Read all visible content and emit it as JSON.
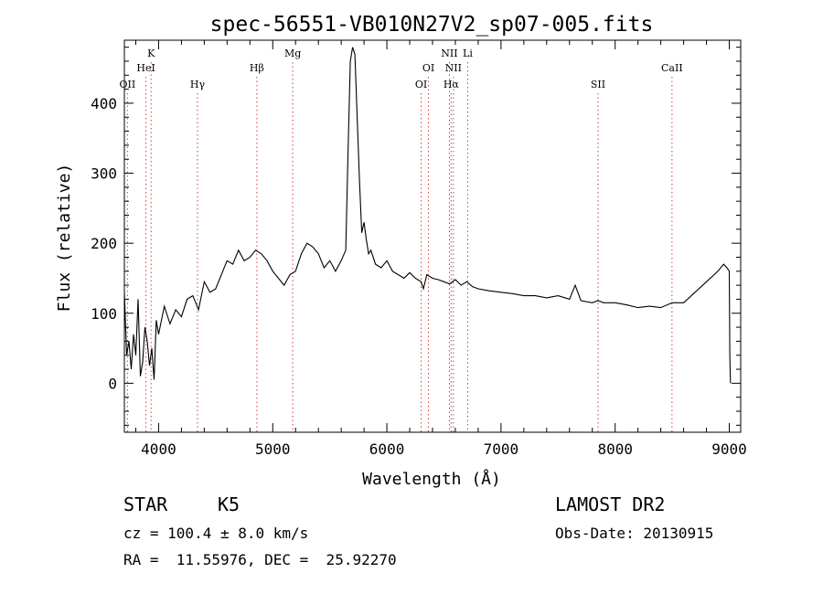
{
  "chart_data": {
    "type": "line",
    "title": "spec-56551-VB010N27V2_sp07-005.fits",
    "xlabel": "Wavelength (Å)",
    "ylabel": "Flux (relative)",
    "xlim": [
      3700,
      9100
    ],
    "ylim": [
      -70,
      490
    ],
    "xticks": [
      4000,
      5000,
      6000,
      7000,
      8000,
      9000
    ],
    "yticks": [
      0,
      100,
      200,
      300,
      400
    ],
    "grid": false,
    "lines": [
      {
        "label": "K",
        "wavelength": 3934,
        "row": 0
      },
      {
        "label": "HeI",
        "wavelength": 3889,
        "row": 1
      },
      {
        "label": "OII",
        "wavelength": 3727,
        "row": 2
      },
      {
        "label": "Hγ",
        "wavelength": 4341,
        "row": 2
      },
      {
        "label": "Hβ",
        "wavelength": 4861,
        "row": 1
      },
      {
        "label": "Mg",
        "wavelength": 5175,
        "row": 0
      },
      {
        "label": "OI",
        "wavelength": 6364,
        "row": 1
      },
      {
        "label": "OI",
        "wavelength": 6300,
        "row": 2
      },
      {
        "label": "NII",
        "wavelength": 6548,
        "row": 0
      },
      {
        "label": "NII",
        "wavelength": 6583,
        "row": 1
      },
      {
        "label": "Hα",
        "wavelength": 6563,
        "row": 2
      },
      {
        "label": "Li",
        "wavelength": 6708,
        "row": 0
      },
      {
        "label": "SII",
        "wavelength": 7850,
        "row": 2
      },
      {
        "label": "CaII",
        "wavelength": 8498,
        "row": 1
      }
    ],
    "series": [
      {
        "x": [
          3700,
          3720,
          3740,
          3760,
          3780,
          3800,
          3820,
          3840,
          3860,
          3880,
          3900,
          3920,
          3940,
          3960,
          3980,
          4000,
          4050,
          4100,
          4150,
          4200,
          4250,
          4300,
          4350,
          4400,
          4450,
          4500,
          4550,
          4600,
          4650,
          4700,
          4750,
          4800,
          4850,
          4900,
          4950,
          5000,
          5050,
          5100,
          5150,
          5200,
          5250,
          5300,
          5350,
          5400,
          5450,
          5500,
          5550,
          5600,
          5640,
          5660,
          5680,
          5700,
          5720,
          5740,
          5760,
          5780,
          5800,
          5820,
          5840,
          5860,
          5900,
          5950,
          6000,
          6050,
          6100,
          6150,
          6200,
          6250,
          6300,
          6320,
          6350,
          6400,
          6450,
          6500,
          6550,
          6600,
          6650,
          6700,
          6750,
          6800,
          6900,
          7000,
          7100,
          7200,
          7300,
          7400,
          7500,
          7600,
          7650,
          7700,
          7800,
          7850,
          7900,
          8000,
          8100,
          8200,
          8300,
          8400,
          8500,
          8600,
          8700,
          8800,
          8900,
          8950,
          8980,
          9000,
          9005,
          9010
        ],
        "y": [
          130,
          40,
          60,
          20,
          70,
          40,
          120,
          10,
          30,
          80,
          60,
          25,
          50,
          5,
          90,
          70,
          110,
          85,
          105,
          95,
          120,
          125,
          105,
          145,
          130,
          135,
          155,
          175,
          170,
          190,
          175,
          180,
          190,
          185,
          175,
          160,
          150,
          140,
          155,
          160,
          185,
          200,
          195,
          185,
          165,
          175,
          160,
          175,
          190,
          330,
          460,
          480,
          470,
          380,
          290,
          215,
          230,
          205,
          185,
          190,
          170,
          165,
          175,
          160,
          155,
          150,
          158,
          150,
          145,
          135,
          155,
          150,
          148,
          145,
          142,
          148,
          140,
          145,
          138,
          135,
          132,
          130,
          128,
          125,
          125,
          122,
          125,
          120,
          140,
          118,
          115,
          118,
          115,
          115,
          112,
          108,
          110,
          108,
          115,
          115,
          130,
          145,
          160,
          170,
          165,
          160,
          40,
          0
        ]
      }
    ]
  },
  "footer": {
    "class_label": "STAR",
    "subclass": "K5",
    "survey": "LAMOST DR2",
    "cz": "cz = 100.4 ± 8.0 km/s",
    "obs_date": "Obs-Date: 20130915",
    "coords": "RA =  11.55976, DEC =  25.92270"
  }
}
